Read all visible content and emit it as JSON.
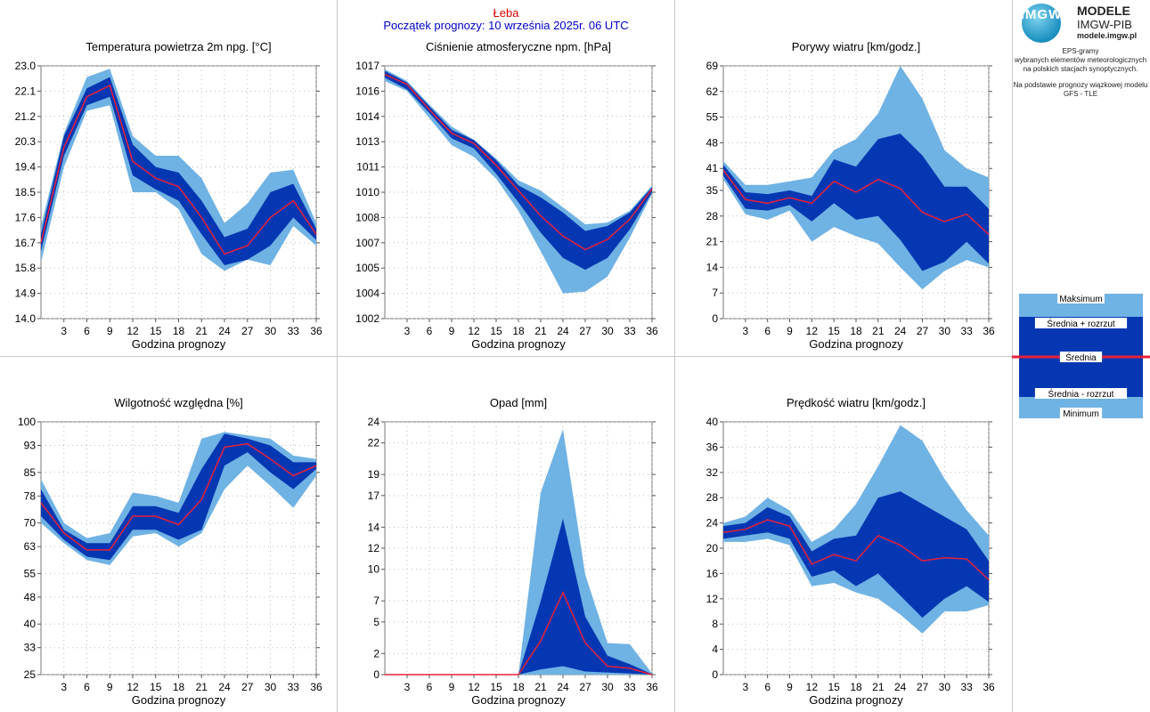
{
  "header": {
    "station": "Łeba",
    "forecast_start": "Początek prognozy: 10 września 2025r. 06 UTC"
  },
  "brand": {
    "logo_text": "IMGW",
    "line1": "MODELE",
    "line2": "IMGW-PIB",
    "line3": "modele.imgw.pl"
  },
  "description": {
    "line1": "EPS-gramy",
    "line2": "wybranych elementów meteorologicznych",
    "line3": "na polskich stacjach  synoptycznych.",
    "line4": "Na podstawie prognozy wiązkowej modelu",
    "line5": "GFS - TLE"
  },
  "legend": {
    "items": [
      "Maksimum",
      "Średnia + rozrzut",
      "Średnia",
      "Średnia - rozrzut",
      "Minimum"
    ]
  },
  "colors": {
    "minmax_band": "#6fb2e4",
    "spread_band": "#0537b2",
    "mean_line": "#e8203c"
  },
  "chart_data": [
    {
      "type": "area",
      "title": "Temperatura powietrza 2m npg. [°C]",
      "xlabel": "Godzina prognozy",
      "ylim": [
        14.0,
        23.0
      ],
      "yticks": [
        "14.0",
        "14.9",
        "15.8",
        "16.7",
        "17.6",
        "18.5",
        "19.4",
        "20.3",
        "21.2",
        "22.1",
        "23.0"
      ],
      "x": [
        0,
        3,
        6,
        9,
        12,
        15,
        18,
        21,
        24,
        27,
        30,
        33,
        36
      ],
      "xticks": [
        "3",
        "6",
        "9",
        "12",
        "15",
        "18",
        "21",
        "24",
        "27",
        "30",
        "33",
        "36"
      ],
      "series": [
        {
          "name": "Maksimum",
          "values": [
            17.3,
            20.6,
            22.6,
            22.9,
            20.5,
            19.8,
            19.8,
            19.0,
            17.4,
            18.1,
            19.2,
            19.3,
            17.4
          ]
        },
        {
          "name": "Średnia + rozrzut",
          "values": [
            17.0,
            20.5,
            22.2,
            22.6,
            20.2,
            19.4,
            19.2,
            18.2,
            16.9,
            17.2,
            18.5,
            18.8,
            17.2
          ]
        },
        {
          "name": "Średnia",
          "values": [
            16.7,
            20.1,
            21.9,
            22.3,
            19.6,
            19.0,
            18.7,
            17.6,
            16.3,
            16.6,
            17.6,
            18.2,
            17.0
          ]
        },
        {
          "name": "Średnia - rozrzut",
          "values": [
            16.4,
            19.8,
            21.6,
            21.9,
            19.1,
            18.6,
            18.2,
            17.0,
            15.9,
            16.1,
            16.6,
            17.6,
            16.8
          ]
        },
        {
          "name": "Minimum",
          "values": [
            16.0,
            19.4,
            21.4,
            21.6,
            18.5,
            18.5,
            17.9,
            16.3,
            15.7,
            16.1,
            15.9,
            17.3,
            16.6
          ]
        }
      ]
    },
    {
      "type": "area",
      "title": "Ciśnienie atmosferyczne npm. [hPa]",
      "xlabel": "Godzina prognozy",
      "ylim": [
        1002,
        1017
      ],
      "ytick_values": [
        1002,
        1003.5,
        1005,
        1006.5,
        1008,
        1009.5,
        1011,
        1012.5,
        1014,
        1015.5,
        1017
      ],
      "yticks": [
        "1002",
        "1004",
        "1005",
        "1007",
        "1008",
        "1010",
        "1011",
        "1013",
        "1014",
        "1016",
        "1017"
      ],
      "x": [
        0,
        3,
        6,
        9,
        12,
        15,
        18,
        21,
        24,
        27,
        30,
        33,
        36
      ],
      "xticks": [
        "3",
        "6",
        "9",
        "12",
        "15",
        "18",
        "21",
        "24",
        "27",
        "30",
        "33",
        "36"
      ],
      "series": [
        {
          "name": "Maksimum",
          "values": [
            1016.8,
            1016.1,
            1014.7,
            1013.4,
            1012.6,
            1011.5,
            1010.2,
            1009.6,
            1008.6,
            1007.6,
            1007.7,
            1008.4,
            1009.9
          ]
        },
        {
          "name": "Średnia + rozrzut",
          "values": [
            1016.7,
            1016.0,
            1014.6,
            1013.2,
            1012.6,
            1011.4,
            1009.9,
            1009.2,
            1008.3,
            1007.2,
            1007.5,
            1008.3,
            1009.8
          ]
        },
        {
          "name": "Średnia",
          "values": [
            1016.5,
            1015.9,
            1014.4,
            1013.0,
            1012.4,
            1011.1,
            1009.6,
            1008.1,
            1006.9,
            1006.1,
            1006.7,
            1007.9,
            1009.7
          ]
        },
        {
          "name": "Średnia - rozrzut",
          "values": [
            1016.3,
            1015.6,
            1014.2,
            1012.7,
            1012.1,
            1010.6,
            1008.9,
            1007.1,
            1005.6,
            1004.9,
            1005.6,
            1007.3,
            1009.5
          ]
        },
        {
          "name": "Minimum",
          "values": [
            1016.1,
            1015.5,
            1013.9,
            1012.3,
            1011.6,
            1010.3,
            1008.4,
            1006.0,
            1003.5,
            1003.6,
            1004.5,
            1006.8,
            1009.4
          ]
        }
      ]
    },
    {
      "type": "area",
      "title": "Porywy wiatru [km/godz.]",
      "xlabel": "Godzina prognozy",
      "ylim": [
        0,
        69
      ],
      "yticks": [
        "0",
        "7",
        "14",
        "21",
        "28",
        "35",
        "41",
        "48",
        "55",
        "62",
        "69"
      ],
      "x": [
        0,
        3,
        6,
        9,
        12,
        15,
        18,
        21,
        24,
        27,
        30,
        33,
        36
      ],
      "xticks": [
        "3",
        "6",
        "9",
        "12",
        "15",
        "18",
        "21",
        "24",
        "27",
        "30",
        "33",
        "36"
      ],
      "series": [
        {
          "name": "Maksimum",
          "values": [
            43,
            36.5,
            36.5,
            37.5,
            38.5,
            46,
            49,
            56,
            69,
            60,
            46,
            41,
            38.5
          ]
        },
        {
          "name": "Średnia + rozrzut",
          "values": [
            42,
            34.5,
            34,
            35,
            33.5,
            43.5,
            41.5,
            49,
            50.5,
            44.5,
            36,
            36,
            30
          ]
        },
        {
          "name": "Średnia",
          "values": [
            40.5,
            32.5,
            31.5,
            33,
            31.5,
            37.5,
            34.5,
            38,
            35.5,
            29,
            26.5,
            28.5,
            23
          ]
        },
        {
          "name": "Średnia - rozrzut",
          "values": [
            39,
            30,
            29.5,
            31,
            26.5,
            31.5,
            27,
            28,
            21.5,
            13,
            15.5,
            21,
            15
          ]
        },
        {
          "name": "Minimum",
          "values": [
            38,
            28.5,
            27,
            29.5,
            21,
            25,
            22.5,
            20.5,
            14,
            8,
            13,
            16,
            14
          ]
        }
      ]
    },
    {
      "type": "area",
      "title": "Wilgotność względna [%]",
      "xlabel": "Godzina prognozy",
      "ylim": [
        25,
        100
      ],
      "yticks": [
        "25",
        "33",
        "40",
        "48",
        "55",
        "63",
        "70",
        "78",
        "85",
        "93",
        "100"
      ],
      "x": [
        0,
        3,
        6,
        9,
        12,
        15,
        18,
        21,
        24,
        27,
        30,
        33,
        36
      ],
      "xticks": [
        "3",
        "6",
        "9",
        "12",
        "15",
        "18",
        "21",
        "24",
        "27",
        "30",
        "33",
        "36"
      ],
      "series": [
        {
          "name": "Maksimum",
          "values": [
            83,
            70,
            65.5,
            67,
            79,
            78,
            76,
            95,
            97,
            96,
            95,
            90,
            89
          ]
        },
        {
          "name": "Średnia + rozrzut",
          "values": [
            80,
            68,
            64,
            64,
            75,
            75,
            73,
            86,
            96.5,
            95,
            93,
            88,
            88
          ]
        },
        {
          "name": "Średnia",
          "values": [
            76,
            67,
            62,
            62,
            72,
            72,
            69.5,
            77,
            92.5,
            93.5,
            89,
            84,
            87
          ]
        },
        {
          "name": "Średnia - rozrzut",
          "values": [
            72,
            65,
            60,
            59,
            68,
            68,
            65,
            68,
            87,
            91,
            85,
            80,
            86
          ]
        },
        {
          "name": "Minimum",
          "values": [
            70,
            64,
            59,
            57.5,
            66,
            67,
            63,
            67,
            80,
            87,
            81,
            74.5,
            84
          ]
        }
      ]
    },
    {
      "type": "area",
      "title": "Opad [mm]",
      "xlabel": "Godzina prognozy",
      "ylim": [
        0,
        24
      ],
      "yticks": [
        "0",
        "2",
        "5",
        "7",
        "10",
        "12",
        "14",
        "17",
        "19",
        "22",
        "24"
      ],
      "x": [
        0,
        3,
        6,
        9,
        12,
        15,
        18,
        21,
        24,
        27,
        30,
        33,
        36
      ],
      "xticks": [
        "3",
        "6",
        "9",
        "12",
        "15",
        "18",
        "21",
        "24",
        "27",
        "30",
        "33",
        "36"
      ],
      "series": [
        {
          "name": "Maksimum",
          "values": [
            0,
            0,
            0,
            0,
            0,
            0,
            0,
            17.3,
            23.3,
            9.5,
            3.0,
            2.9,
            0.1
          ]
        },
        {
          "name": "Średnia + rozrzut",
          "values": [
            0,
            0,
            0,
            0,
            0,
            0,
            0,
            7.0,
            14.8,
            5.5,
            1.8,
            1.0,
            0.05
          ]
        },
        {
          "name": "Średnia",
          "values": [
            0,
            0,
            0,
            0,
            0,
            0,
            0,
            3.2,
            7.8,
            3.0,
            0.8,
            0.6,
            0
          ]
        },
        {
          "name": "Średnia - rozrzut",
          "values": [
            0,
            0,
            0,
            0,
            0,
            0,
            0,
            0.5,
            0.8,
            0.3,
            0.2,
            0.1,
            0
          ]
        },
        {
          "name": "Minimum",
          "values": [
            0,
            0,
            0,
            0,
            0,
            0,
            0,
            0,
            0,
            0,
            0,
            0,
            0
          ]
        }
      ]
    },
    {
      "type": "area",
      "title": "Prędkość wiatru [km/godz.]",
      "xlabel": "Godzina prognozy",
      "ylim": [
        0,
        40
      ],
      "yticks": [
        "0",
        "4",
        "8",
        "12",
        "16",
        "20",
        "24",
        "28",
        "32",
        "36",
        "40"
      ],
      "x": [
        0,
        3,
        6,
        9,
        12,
        15,
        18,
        21,
        24,
        27,
        30,
        33,
        36
      ],
      "xticks": [
        "3",
        "6",
        "9",
        "12",
        "15",
        "18",
        "21",
        "24",
        "27",
        "30",
        "33",
        "36"
      ],
      "series": [
        {
          "name": "Maksimum",
          "values": [
            24,
            25,
            28,
            26,
            21,
            23,
            27,
            33,
            39.5,
            37,
            31,
            26,
            22
          ]
        },
        {
          "name": "Średnia + rozrzut",
          "values": [
            23.5,
            24,
            26.5,
            25,
            19.5,
            21.5,
            22,
            28,
            29,
            27,
            25,
            23,
            18
          ]
        },
        {
          "name": "Średnia",
          "values": [
            22.5,
            23,
            24.5,
            23.5,
            17.5,
            19,
            18,
            22,
            20.5,
            18,
            18.5,
            18.3,
            15
          ]
        },
        {
          "name": "Średnia - rozrzut",
          "values": [
            21.5,
            22,
            22.5,
            21.5,
            15.5,
            16.5,
            14,
            16,
            12.5,
            9,
            12,
            14,
            11.5
          ]
        },
        {
          "name": "Minimum",
          "values": [
            21,
            21,
            21.5,
            20.5,
            14,
            14.5,
            13,
            12,
            9.5,
            6.5,
            10,
            10,
            11
          ]
        }
      ]
    }
  ]
}
